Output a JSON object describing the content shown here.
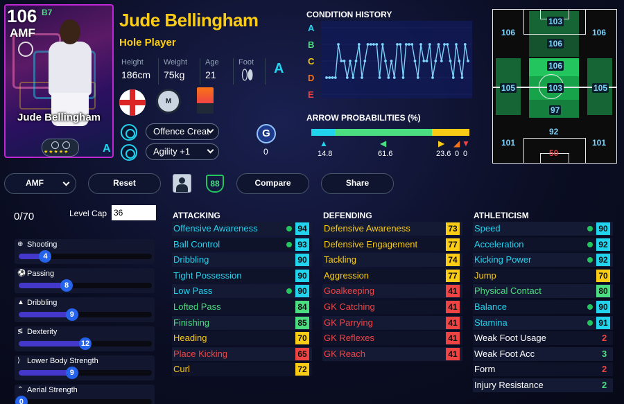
{
  "card": {
    "rating": "106",
    "rating_sup": "B7",
    "position": "AMF",
    "name": "Jude Bellingham",
    "stars": "★★★★★",
    "grade": "A"
  },
  "player": {
    "name": "Jude Bellingham",
    "style": "Hole Player",
    "height_label": "Height",
    "height": "186cm",
    "weight_label": "Weight",
    "weight": "75kg",
    "age_label": "Age",
    "age": "21",
    "foot_label": "Foot",
    "foot_grade": "A"
  },
  "skills": {
    "skill1": "Offence Creat",
    "skill2": "Agility +1",
    "g_count": "0"
  },
  "condition": {
    "title": "CONDITION HISTORY",
    "letters": [
      "A",
      "B",
      "C",
      "D",
      "E"
    ],
    "letter_colors": [
      "#22d3ee",
      "#4ade80",
      "#facc15",
      "#f97316",
      "#ef4444"
    ],
    "series": [
      3,
      3,
      3,
      3,
      1,
      2,
      2,
      3,
      2,
      3,
      2,
      1,
      3,
      2,
      1,
      1,
      1,
      1,
      3,
      1,
      2,
      3,
      2,
      3,
      1,
      1,
      3,
      1,
      1,
      1,
      2,
      3,
      1,
      2,
      2,
      1,
      3,
      2,
      1,
      2,
      1,
      1,
      2,
      3,
      1,
      2,
      3,
      1,
      2
    ]
  },
  "arrows": {
    "title": "ARROW PROBABILITIES (%)",
    "values": [
      "14.8",
      "61.6",
      "23.6",
      "0",
      "0"
    ],
    "colors": [
      "#22d3ee",
      "#4ade80",
      "#facc15",
      "#f97316",
      "#ef4444"
    ],
    "fractions": [
      0.148,
      0.616,
      0.236,
      0,
      0
    ]
  },
  "pitch": {
    "gk": "50",
    "cf": "103",
    "ss": "106",
    "lwf": "106",
    "rwf": "106",
    "amf": "106",
    "lmf": "105",
    "rmf": "105",
    "cmf": "103",
    "dmf": "97",
    "cb": "92",
    "lb": "101",
    "rb": "101"
  },
  "buttons": {
    "position": "AMF",
    "reset": "Reset",
    "level_badge": "88",
    "compare": "Compare",
    "share": "Share"
  },
  "progression": {
    "points": "0/70",
    "level_cap_label": "Level Cap",
    "level_cap": "36",
    "items": [
      {
        "label": "Shooting",
        "value": "4",
        "fraction": 0.2,
        "icon": "⊕"
      },
      {
        "label": "Passing",
        "value": "8",
        "fraction": 0.36,
        "icon": "⚽"
      },
      {
        "label": "Dribbling",
        "value": "9",
        "fraction": 0.4,
        "icon": "▲"
      },
      {
        "label": "Dexterity",
        "value": "12",
        "fraction": 0.5,
        "icon": "≶"
      },
      {
        "label": "Lower Body Strength",
        "value": "9",
        "fraction": 0.4,
        "icon": "⟩"
      },
      {
        "label": "Aerial Strength",
        "value": "0",
        "fraction": 0.02,
        "icon": "⌃"
      }
    ]
  },
  "attacking": {
    "title": "ATTACKING",
    "rows": [
      {
        "name": "Offensive Awareness",
        "value": "94",
        "color": "#22d3ee",
        "dot": true
      },
      {
        "name": "Ball Control",
        "value": "93",
        "color": "#22d3ee",
        "dot": true
      },
      {
        "name": "Dribbling",
        "value": "90",
        "color": "#22d3ee",
        "dot": false
      },
      {
        "name": "Tight Possession",
        "value": "90",
        "color": "#22d3ee",
        "dot": false
      },
      {
        "name": "Low Pass",
        "value": "90",
        "color": "#22d3ee",
        "dot": true
      },
      {
        "name": "Lofted Pass",
        "value": "84",
        "color": "#4ade80",
        "dot": false
      },
      {
        "name": "Finishing",
        "value": "85",
        "color": "#4ade80",
        "dot": false
      },
      {
        "name": "Heading",
        "value": "70",
        "color": "#facc15",
        "dot": false
      },
      {
        "name": "Place Kicking",
        "value": "65",
        "color": "#ef4444",
        "dot": false
      },
      {
        "name": "Curl",
        "value": "72",
        "color": "#facc15",
        "dot": false
      }
    ]
  },
  "defending": {
    "title": "DEFENDING",
    "rows": [
      {
        "name": "Defensive Awareness",
        "value": "73",
        "color": "#facc15"
      },
      {
        "name": "Defensive Engagement",
        "value": "77",
        "color": "#facc15"
      },
      {
        "name": "Tackling",
        "value": "74",
        "color": "#facc15"
      },
      {
        "name": "Aggression",
        "value": "77",
        "color": "#facc15"
      },
      {
        "name": "Goalkeeping",
        "value": "41",
        "color": "#ef4444"
      },
      {
        "name": "GK Catching",
        "value": "41",
        "color": "#ef4444"
      },
      {
        "name": "GK Parrying",
        "value": "41",
        "color": "#ef4444"
      },
      {
        "name": "GK Reflexes",
        "value": "41",
        "color": "#ef4444"
      },
      {
        "name": "GK Reach",
        "value": "41",
        "color": "#ef4444"
      }
    ]
  },
  "athleticism": {
    "title": "ATHLETICISM",
    "rows": [
      {
        "name": "Speed",
        "value": "90",
        "color": "#22d3ee",
        "dot": true
      },
      {
        "name": "Acceleration",
        "value": "92",
        "color": "#22d3ee",
        "dot": true
      },
      {
        "name": "Kicking Power",
        "value": "92",
        "color": "#22d3ee",
        "dot": true
      },
      {
        "name": "Jump",
        "value": "70",
        "color": "#facc15",
        "dot": false
      },
      {
        "name": "Physical Contact",
        "value": "80",
        "color": "#4ade80",
        "dot": false
      },
      {
        "name": "Balance",
        "value": "90",
        "color": "#22d3ee",
        "dot": true
      },
      {
        "name": "Stamina",
        "value": "91",
        "color": "#22d3ee",
        "dot": true
      }
    ],
    "extras": [
      {
        "name": "Weak Foot Usage",
        "value": "2",
        "color": "#ef4444"
      },
      {
        "name": "Weak Foot Acc",
        "value": "3",
        "color": "#4ade80"
      },
      {
        "name": "Form",
        "value": "2",
        "color": "#ef4444"
      },
      {
        "name": "Injury Resistance",
        "value": "2",
        "color": "#4ade80"
      }
    ]
  }
}
